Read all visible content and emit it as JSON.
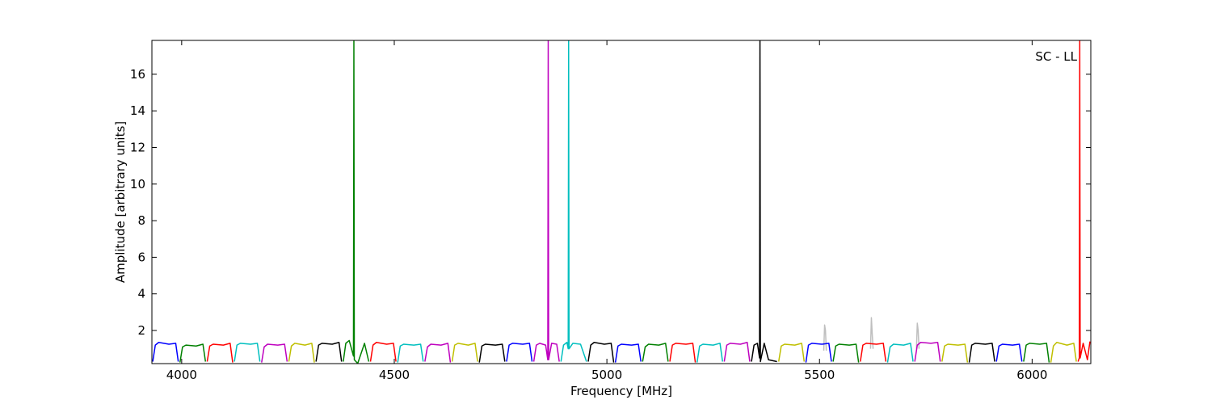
{
  "chart_data": {
    "type": "line",
    "xlabel": "Frequency [MHz]",
    "ylabel": "Amplitude [arbitrary units]",
    "annotation": "SC - LL",
    "xlim": [
      3930,
      6138
    ],
    "ylim": [
      0.19,
      17.85
    ],
    "xticks": [
      4000,
      4500,
      5000,
      5500,
      6000
    ],
    "yticks": [
      2,
      4,
      6,
      8,
      10,
      12,
      14,
      16
    ],
    "series": [
      {
        "color": "#bfbfbf",
        "x": [
          5510,
          5512,
          5514,
          5516,
          5600,
          5620,
          5622,
          5624,
          5626,
          5700,
          5728,
          5730,
          5732,
          5734
        ],
        "values": [
          0.9,
          2.3,
          2.0,
          0.9,
          null,
          1.0,
          2.7,
          1.8,
          1.0,
          null,
          1.0,
          2.4,
          2.0,
          1.0
        ]
      },
      {
        "color": "#0000ff",
        "x": [
          3932,
          3938,
          3946,
          3970,
          3986,
          3992
        ],
        "values": [
          0.3,
          1.2,
          1.35,
          1.25,
          1.3,
          0.3
        ]
      },
      {
        "color": "#008000",
        "x": [
          3996,
          4002,
          4010,
          4034,
          4050,
          4056
        ],
        "values": [
          0.25,
          1.1,
          1.2,
          1.15,
          1.25,
          0.3
        ]
      },
      {
        "color": "#ff0000",
        "x": [
          4060,
          4066,
          4074,
          4098,
          4114,
          4120
        ],
        "values": [
          0.3,
          1.15,
          1.25,
          1.2,
          1.3,
          0.25
        ]
      },
      {
        "color": "#00bfbf",
        "x": [
          4124,
          4130,
          4138,
          4162,
          4178,
          4184
        ],
        "values": [
          0.3,
          1.2,
          1.3,
          1.25,
          1.3,
          0.3
        ]
      },
      {
        "color": "#bf00bf",
        "x": [
          4188,
          4194,
          4202,
          4226,
          4242,
          4248
        ],
        "values": [
          0.25,
          1.1,
          1.25,
          1.2,
          1.25,
          0.3
        ]
      },
      {
        "color": "#bfbf00",
        "x": [
          4252,
          4258,
          4266,
          4290,
          4306,
          4312
        ],
        "values": [
          0.3,
          1.15,
          1.3,
          1.2,
          1.3,
          0.25
        ]
      },
      {
        "color": "#000000",
        "x": [
          4316,
          4322,
          4330,
          4354,
          4370,
          4376
        ],
        "values": [
          0.3,
          1.2,
          1.3,
          1.25,
          1.35,
          0.3
        ]
      },
      {
        "color": "#008000",
        "x": [
          4380,
          4386,
          4394,
          4404,
          4405,
          4406,
          4414,
          4430,
          4440
        ],
        "values": [
          0.3,
          1.3,
          1.45,
          0.6,
          17.85,
          0.4,
          0.2,
          1.3,
          0.3
        ]
      },
      {
        "color": "#ff0000",
        "x": [
          4444,
          4450,
          4458,
          4482,
          4498,
          4504
        ],
        "values": [
          0.3,
          1.2,
          1.35,
          1.25,
          1.3,
          0.3
        ]
      },
      {
        "color": "#00bfbf",
        "x": [
          4508,
          4514,
          4522,
          4546,
          4562,
          4568
        ],
        "values": [
          0.25,
          1.15,
          1.25,
          1.2,
          1.25,
          0.3
        ]
      },
      {
        "color": "#bf00bf",
        "x": [
          4572,
          4578,
          4586,
          4610,
          4626,
          4632
        ],
        "values": [
          0.3,
          1.1,
          1.25,
          1.2,
          1.3,
          0.25
        ]
      },
      {
        "color": "#bfbf00",
        "x": [
          4636,
          4642,
          4650,
          4674,
          4690,
          4696
        ],
        "values": [
          0.3,
          1.2,
          1.3,
          1.2,
          1.3,
          0.3
        ]
      },
      {
        "color": "#000000",
        "x": [
          4700,
          4706,
          4714,
          4738,
          4754,
          4760
        ],
        "values": [
          0.25,
          1.15,
          1.25,
          1.2,
          1.25,
          0.3
        ]
      },
      {
        "color": "#0000ff",
        "x": [
          4764,
          4770,
          4778,
          4802,
          4818,
          4824
        ],
        "values": [
          0.3,
          1.2,
          1.3,
          1.25,
          1.3,
          0.3
        ]
      },
      {
        "color": "#bf00bf",
        "x": [
          4828,
          4834,
          4842,
          4856,
          4861,
          4862,
          4863,
          4870,
          4882,
          4888
        ],
        "values": [
          0.3,
          1.2,
          1.3,
          1.2,
          0.4,
          17.85,
          0.4,
          1.3,
          1.25,
          0.3
        ]
      },
      {
        "color": "#00bfbf",
        "x": [
          4892,
          4898,
          4906,
          4909,
          4910,
          4911,
          4920,
          4938,
          4952
        ],
        "values": [
          0.3,
          1.2,
          1.35,
          1.0,
          17.85,
          1.0,
          1.3,
          1.25,
          0.3
        ]
      },
      {
        "color": "#000000",
        "x": [
          4956,
          4962,
          4970,
          4994,
          5010,
          5016
        ],
        "values": [
          0.3,
          1.2,
          1.35,
          1.25,
          1.3,
          0.25
        ]
      },
      {
        "color": "#0000ff",
        "x": [
          5020,
          5026,
          5034,
          5058,
          5074,
          5080
        ],
        "values": [
          0.25,
          1.15,
          1.25,
          1.2,
          1.25,
          0.3
        ]
      },
      {
        "color": "#008000",
        "x": [
          5084,
          5090,
          5098,
          5122,
          5138,
          5144
        ],
        "values": [
          0.3,
          1.1,
          1.25,
          1.2,
          1.3,
          0.3
        ]
      },
      {
        "color": "#ff0000",
        "x": [
          5148,
          5154,
          5162,
          5186,
          5202,
          5208
        ],
        "values": [
          0.3,
          1.2,
          1.3,
          1.25,
          1.3,
          0.25
        ]
      },
      {
        "color": "#00bfbf",
        "x": [
          5212,
          5218,
          5226,
          5250,
          5266,
          5272
        ],
        "values": [
          0.25,
          1.15,
          1.25,
          1.2,
          1.3,
          0.3
        ]
      },
      {
        "color": "#bf00bf",
        "x": [
          5276,
          5282,
          5290,
          5314,
          5330,
          5336
        ],
        "values": [
          0.3,
          1.2,
          1.3,
          1.25,
          1.35,
          0.3
        ]
      },
      {
        "color": "#000000",
        "x": [
          5340,
          5346,
          5354,
          5359,
          5360,
          5361,
          5370,
          5380,
          5400
        ],
        "values": [
          0.3,
          1.2,
          1.3,
          0.5,
          17.85,
          0.3,
          1.3,
          0.4,
          0.3
        ]
      },
      {
        "color": "#bfbf00",
        "x": [
          5404,
          5410,
          5418,
          5442,
          5458,
          5464
        ],
        "values": [
          0.3,
          1.15,
          1.25,
          1.2,
          1.3,
          0.3
        ]
      },
      {
        "color": "#0000ff",
        "x": [
          5468,
          5474,
          5482,
          5506,
          5522,
          5528
        ],
        "values": [
          0.25,
          1.2,
          1.3,
          1.25,
          1.3,
          0.3
        ]
      },
      {
        "color": "#008000",
        "x": [
          5532,
          5538,
          5546,
          5570,
          5586,
          5592
        ],
        "values": [
          0.3,
          1.15,
          1.25,
          1.2,
          1.25,
          0.25
        ]
      },
      {
        "color": "#ff0000",
        "x": [
          5596,
          5602,
          5610,
          5634,
          5650,
          5656
        ],
        "values": [
          0.3,
          1.2,
          1.3,
          1.25,
          1.3,
          0.3
        ]
      },
      {
        "color": "#00bfbf",
        "x": [
          5660,
          5666,
          5674,
          5698,
          5714,
          5720
        ],
        "values": [
          0.25,
          1.1,
          1.25,
          1.2,
          1.3,
          0.3
        ]
      },
      {
        "color": "#bf00bf",
        "x": [
          5724,
          5730,
          5738,
          5762,
          5778,
          5784
        ],
        "values": [
          0.3,
          1.2,
          1.35,
          1.3,
          1.35,
          0.3
        ]
      },
      {
        "color": "#bfbf00",
        "x": [
          5788,
          5794,
          5802,
          5826,
          5842,
          5848
        ],
        "values": [
          0.3,
          1.15,
          1.25,
          1.2,
          1.25,
          0.25
        ]
      },
      {
        "color": "#000000",
        "x": [
          5852,
          5858,
          5866,
          5890,
          5906,
          5912
        ],
        "values": [
          0.25,
          1.2,
          1.3,
          1.25,
          1.3,
          0.3
        ]
      },
      {
        "color": "#0000ff",
        "x": [
          5916,
          5922,
          5930,
          5954,
          5970,
          5976
        ],
        "values": [
          0.3,
          1.15,
          1.25,
          1.2,
          1.25,
          0.3
        ]
      },
      {
        "color": "#008000",
        "x": [
          5980,
          5986,
          5994,
          6018,
          6034,
          6040
        ],
        "values": [
          0.3,
          1.2,
          1.3,
          1.25,
          1.3,
          0.25
        ]
      },
      {
        "color": "#bfbf00",
        "x": [
          6044,
          6050,
          6058,
          6082,
          6098,
          6104
        ],
        "values": [
          0.25,
          1.15,
          1.35,
          1.2,
          1.3,
          0.3
        ]
      },
      {
        "color": "#ff0000",
        "x": [
          6108,
          6111,
          6112,
          6113,
          6120,
          6130,
          6136
        ],
        "values": [
          0.3,
          0.5,
          17.85,
          0.5,
          1.3,
          0.4,
          1.4
        ]
      }
    ]
  }
}
